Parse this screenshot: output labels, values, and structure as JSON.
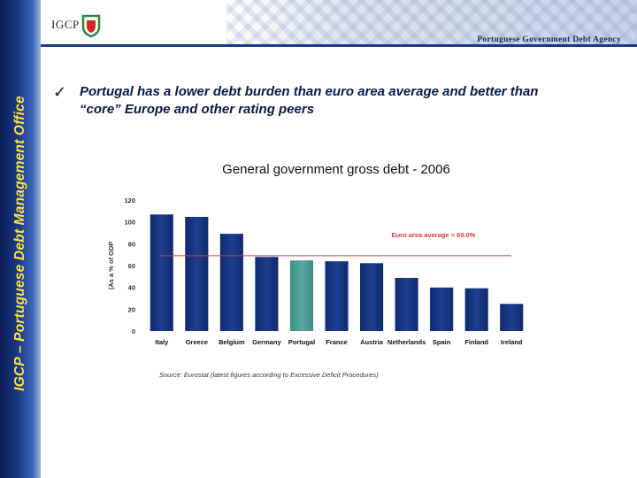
{
  "header": {
    "logo_text": "IGCP",
    "agency_name": "Portuguese Government Debt Agency"
  },
  "sidebar": {
    "title": "IGCP – Portuguese Debt Management Office"
  },
  "bullet": {
    "check": "✓",
    "text": "Portugal has a lower debt burden than euro area average and better than “core” Europe and other rating peers"
  },
  "colors": {
    "bar": "#1d3f8f",
    "highlight": "#5aa9a0",
    "average_line": "#d83a3a",
    "sidebar_text": "#ffe23a"
  },
  "chart_data": {
    "type": "bar",
    "title": "General government gross debt - 2006",
    "ylabel": "(As a % of GDP",
    "ylim": [
      0,
      120
    ],
    "yticks": [
      0,
      20,
      40,
      60,
      80,
      100,
      120
    ],
    "categories": [
      "Italy",
      "Greece",
      "Belgium",
      "Germany",
      "Portugal",
      "France",
      "Austria",
      "Netherlands",
      "Spain",
      "Finland",
      "Ireland"
    ],
    "values": [
      106.8,
      104.6,
      89.1,
      67.9,
      64.7,
      63.9,
      62.2,
      48.7,
      39.9,
      39.2,
      24.9
    ],
    "highlight": "Portugal",
    "reference_line": {
      "label": "Euro area average = 69.0%",
      "value": 69.0
    }
  },
  "source": "Source: Eurostat (latest figures according to Excessive Deficit Procedures)"
}
